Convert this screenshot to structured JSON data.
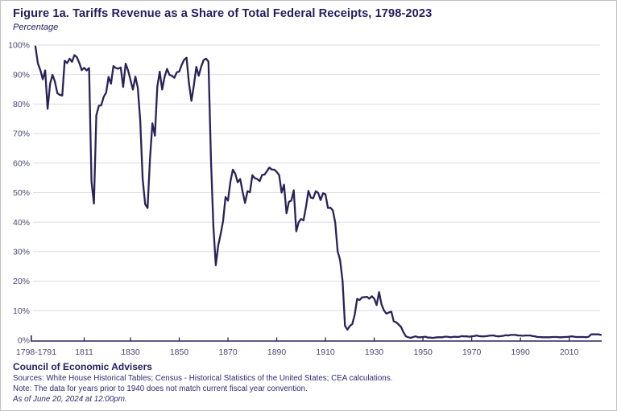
{
  "header": {
    "title": "Figure 1a. Tariffs Revenue as a Share of Total Federal Receipts, 1798-2023",
    "subtitle": "Percentage"
  },
  "footer": {
    "org": "Council of Economic Advisers",
    "sources": "Sources: White House Historical Tables; Census - Historical Statistics of the United States; CEA calculations.",
    "note": "Note: The data for years prior to 1940 does not match current fiscal year convention.",
    "as_of": "As of June 20, 2024 at 12:00pm."
  },
  "colors": {
    "line": "#2b2158",
    "grid": "#dcdae8",
    "axis": "#2b2158",
    "title_text": "#211d5e",
    "axis_label_text": "#4b4875",
    "footer_text": "#2e2b70"
  },
  "chart_data": {
    "type": "line",
    "title": "Figure 1a. Tariffs Revenue as a Share of Total Federal Receipts, 1798-2023",
    "ylabel": "Percentage",
    "xlabel": "",
    "grid": "horizontal",
    "legend": "none",
    "xlim": [
      1791,
      2023
    ],
    "ylim": [
      0,
      100
    ],
    "y_ticks": [
      0,
      10,
      20,
      30,
      40,
      50,
      60,
      70,
      80,
      90,
      100
    ],
    "y_tick_suffix": "%",
    "x_origin_label": "1798-1791",
    "x_ticks": [
      {
        "year": 1811,
        "label": "1811"
      },
      {
        "year": 1830,
        "label": "1830"
      },
      {
        "year": 1850,
        "label": "1850"
      },
      {
        "year": 1870,
        "label": "1870"
      },
      {
        "year": 1890,
        "label": "1890"
      },
      {
        "year": 1910,
        "label": "1910"
      },
      {
        "year": 1930,
        "label": "1930"
      },
      {
        "year": 1950,
        "label": "1950"
      },
      {
        "year": 1970,
        "label": "1970"
      },
      {
        "year": 1990,
        "label": "1990"
      },
      {
        "year": 2010,
        "label": "2010"
      }
    ],
    "series": [
      {
        "name": "Tariffs revenue share of total federal receipts (%)",
        "start_year": 1791,
        "end_year": 2023,
        "values": [
          99.5,
          93.8,
          91.5,
          88.4,
          91.4,
          78.4,
          86.9,
          89.9,
          87.6,
          83.7,
          83.1,
          82.9,
          94.7,
          93.9,
          95.4,
          94.3,
          96.6,
          95.9,
          93.9,
          91.5,
          92.3,
          91.4,
          92.2,
          53.7,
          46.3,
          76.2,
          79.4,
          79.6,
          82.4,
          83.9,
          89.2,
          86.9,
          92.9,
          92.2,
          92.0,
          92.4,
          85.8,
          93.7,
          91.4,
          88.2,
          84.9,
          89.3,
          85.5,
          74.4,
          54.7,
          46.1,
          44.8,
          61.4,
          73.5,
          69.3,
          85.9,
          91.0,
          84.9,
          89.3,
          91.9,
          89.9,
          89.6,
          88.9,
          90.8,
          91.0,
          93.3,
          95.0,
          95.7,
          87.0,
          81.1,
          86.4,
          92.6,
          89.6,
          92.7,
          94.9,
          95.4,
          94.4,
          61.3,
          38.7,
          25.4,
          32.1,
          36.0,
          40.5,
          48.5,
          47.3,
          53.8,
          57.8,
          56.4,
          53.5,
          54.6,
          50.3,
          46.5,
          50.5,
          50.1,
          55.9,
          54.9,
          54.6,
          53.9,
          56.0,
          56.1,
          57.3,
          58.5,
          57.8,
          57.8,
          57.0,
          55.9,
          50.0,
          52.7,
          43.0,
          46.9,
          47.3,
          50.8,
          36.9,
          40.0,
          41.1,
          40.6,
          45.2,
          50.6,
          48.3,
          48.1,
          50.5,
          49.9,
          47.5,
          49.8,
          49.4,
          44.8,
          44.9,
          44.0,
          39.8,
          30.1,
          27.2,
          20.1,
          4.9,
          3.6,
          4.8,
          5.5,
          8.7,
          14.0,
          13.6,
          14.5,
          14.6,
          14.7,
          14.1,
          14.9,
          14.1,
          11.9,
          16.3,
          12.1,
          10.1,
          9.0,
          9.4,
          9.7,
          6.4,
          6.1,
          5.3,
          4.5,
          2.7,
          1.3,
          1.0,
          0.8,
          1.1,
          1.3,
          1.0,
          1.0,
          1.1,
          1.2,
          0.9,
          0.9,
          0.8,
          0.9,
          1.0,
          1.0,
          1.0,
          1.2,
          1.2,
          1.0,
          1.1,
          1.2,
          1.1,
          1.2,
          1.4,
          1.3,
          1.3,
          1.2,
          1.3,
          1.4,
          1.6,
          1.4,
          1.3,
          1.3,
          1.4,
          1.5,
          1.6,
          1.6,
          1.4,
          1.3,
          1.4,
          1.5,
          1.7,
          1.6,
          1.8,
          1.8,
          1.8,
          1.6,
          1.6,
          1.5,
          1.6,
          1.6,
          1.6,
          1.4,
          1.3,
          1.1,
          1.1,
          1.0,
          1.0,
          1.0,
          1.0,
          1.1,
          1.1,
          1.1,
          1.0,
          1.0,
          1.1,
          1.1,
          1.2,
          1.3,
          1.2,
          1.1,
          1.1,
          1.1,
          1.1,
          1.0,
          1.2,
          2.0,
          2.0,
          2.0,
          2.0,
          1.8
        ]
      }
    ]
  }
}
